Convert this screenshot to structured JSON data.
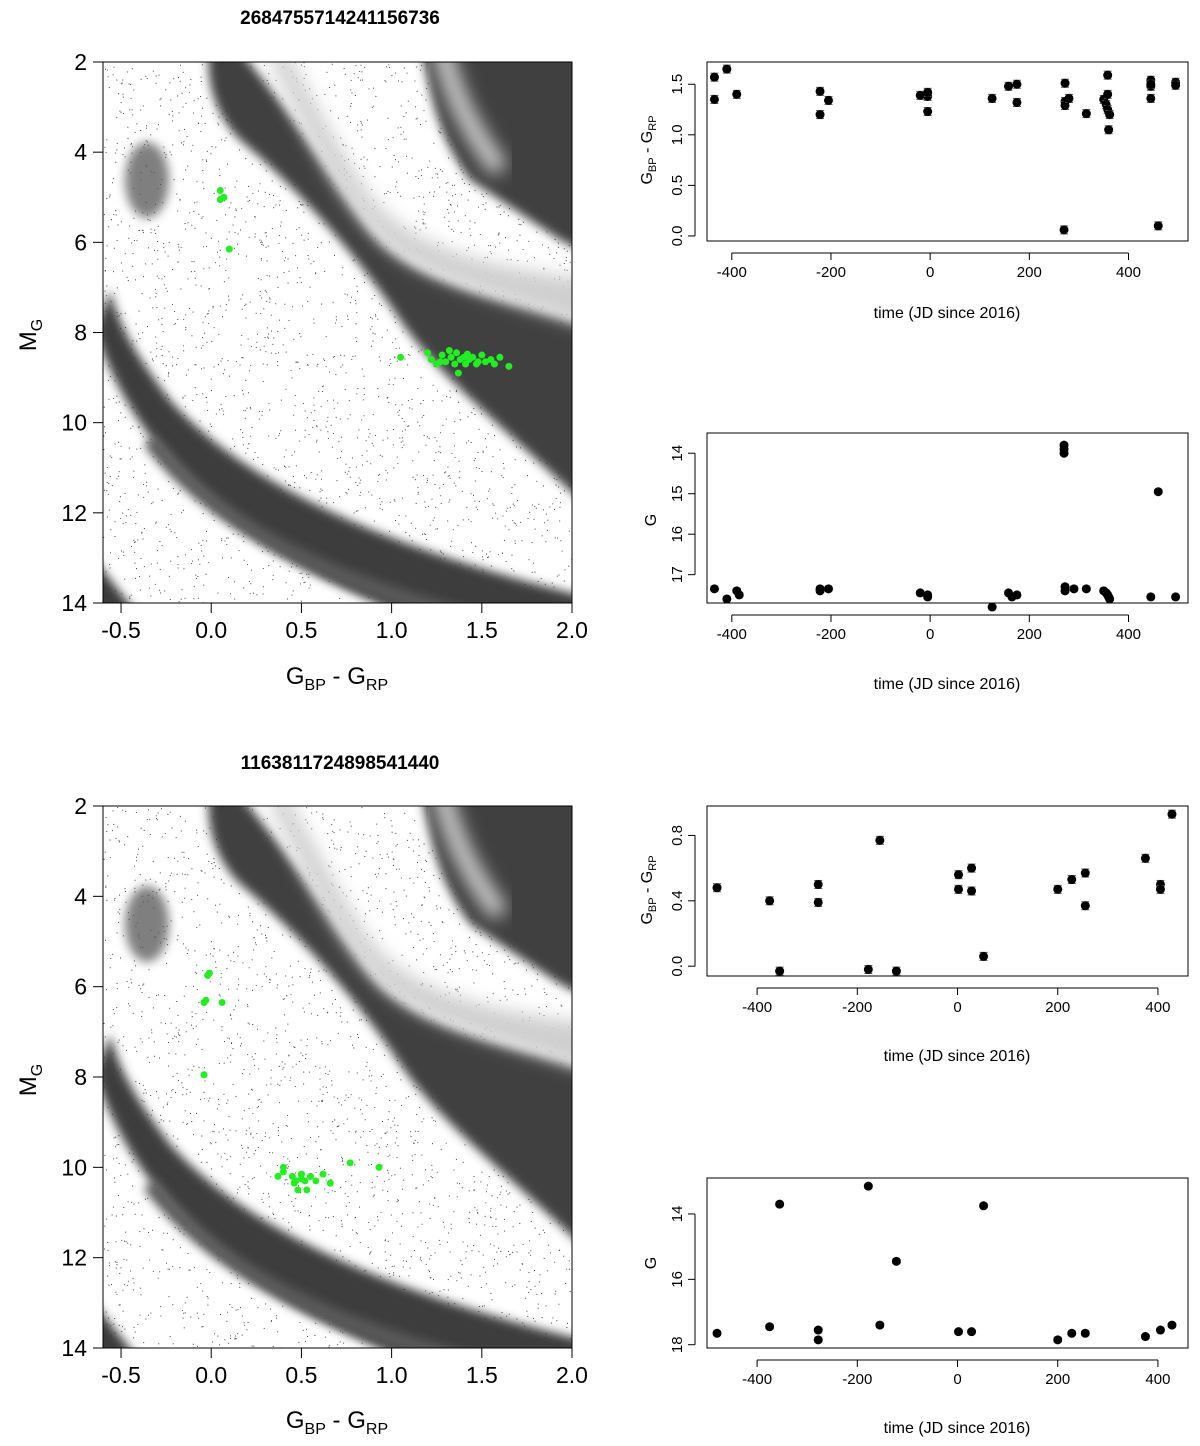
{
  "figures": [
    {
      "source_id": "2684755714241156736",
      "cmd": {
        "type": "scatter",
        "xlabel_main": "G",
        "xlabel_sub1": "BP",
        "xlabel_mid": " - G",
        "xlabel_sub2": "RP",
        "ylabel_main": "M",
        "ylabel_sub": "G",
        "xlim": [
          -0.6,
          2.0
        ],
        "ylim": [
          14,
          2
        ],
        "y_inverted": true,
        "xticks": [
          "-0.5",
          "0.0",
          "0.5",
          "1.0",
          "1.5",
          "2.0"
        ],
        "yticks": [
          "2",
          "4",
          "6",
          "8",
          "10",
          "12",
          "14"
        ],
        "background": "greyscale density of field stars (main sequence, white dwarf sequence, giant branch)",
        "point_color": "#22ee22",
        "points": [
          [
            0.05,
            4.85
          ],
          [
            0.07,
            5.0
          ],
          [
            0.05,
            5.05
          ],
          [
            0.1,
            6.15
          ],
          [
            1.05,
            8.55
          ],
          [
            1.2,
            8.45
          ],
          [
            1.22,
            8.6
          ],
          [
            1.25,
            8.7
          ],
          [
            1.28,
            8.5
          ],
          [
            1.3,
            8.65
          ],
          [
            1.32,
            8.4
          ],
          [
            1.33,
            8.55
          ],
          [
            1.35,
            8.7
          ],
          [
            1.36,
            8.45
          ],
          [
            1.37,
            8.9
          ],
          [
            1.38,
            8.6
          ],
          [
            1.4,
            8.55
          ],
          [
            1.41,
            8.7
          ],
          [
            1.43,
            8.6
          ],
          [
            1.45,
            8.55
          ],
          [
            1.47,
            8.7
          ],
          [
            1.48,
            8.65
          ],
          [
            1.5,
            8.5
          ],
          [
            1.52,
            8.65
          ],
          [
            1.55,
            8.6
          ],
          [
            1.57,
            8.7
          ],
          [
            1.6,
            8.55
          ],
          [
            1.65,
            8.75
          ],
          [
            1.27,
            8.65
          ],
          [
            1.42,
            8.48
          ]
        ]
      },
      "color_ts": {
        "type": "scatter",
        "xlabel": "time (JD since 2016)",
        "ylabel_main": "G",
        "ylabel_sub1": "BP",
        "ylabel_mid": " - G",
        "ylabel_sub2": "RP",
        "xlim": [
          -450,
          520
        ],
        "ylim": [
          -0.05,
          1.72
        ],
        "xticks": [
          "-400",
          "-200",
          "0",
          "200",
          "400"
        ],
        "yticks": [
          "0.0",
          "0.5",
          "1.0",
          "1.5"
        ],
        "points": [
          [
            -435,
            1.57
          ],
          [
            -435,
            1.35
          ],
          [
            -410,
            1.65
          ],
          [
            -390,
            1.4
          ],
          [
            -222,
            1.43
          ],
          [
            -222,
            1.2
          ],
          [
            -205,
            1.34
          ],
          [
            -20,
            1.39
          ],
          [
            -5,
            1.38
          ],
          [
            -5,
            1.23
          ],
          [
            -5,
            1.42
          ],
          [
            125,
            1.36
          ],
          [
            158,
            1.48
          ],
          [
            175,
            1.5
          ],
          [
            175,
            1.32
          ],
          [
            270,
            0.06
          ],
          [
            272,
            1.51
          ],
          [
            272,
            1.33
          ],
          [
            272,
            1.29
          ],
          [
            280,
            1.36
          ],
          [
            315,
            1.21
          ],
          [
            350,
            1.35
          ],
          [
            355,
            1.3
          ],
          [
            358,
            1.59
          ],
          [
            358,
            1.4
          ],
          [
            358,
            1.25
          ],
          [
            360,
            1.05
          ],
          [
            362,
            1.2
          ],
          [
            445,
            1.54
          ],
          [
            445,
            1.48
          ],
          [
            445,
            1.36
          ],
          [
            445,
            1.5
          ],
          [
            460,
            0.1
          ],
          [
            495,
            1.52
          ],
          [
            495,
            1.49
          ]
        ]
      },
      "mag_ts": {
        "type": "scatter",
        "xlabel": "time (JD since 2016)",
        "ylabel": "G",
        "xlim": [
          -450,
          520
        ],
        "ylim": [
          17.7,
          13.5
        ],
        "y_inverted": true,
        "xticks": [
          "-400",
          "-200",
          "0",
          "200",
          "400"
        ],
        "yticks": [
          "14",
          "15",
          "16",
          "17"
        ],
        "points": [
          [
            -435,
            17.35
          ],
          [
            -410,
            17.6
          ],
          [
            -390,
            17.4
          ],
          [
            -385,
            17.5
          ],
          [
            -222,
            17.4
          ],
          [
            -222,
            17.35
          ],
          [
            -205,
            17.35
          ],
          [
            -20,
            17.45
          ],
          [
            -5,
            17.5
          ],
          [
            -5,
            17.55
          ],
          [
            125,
            17.8
          ],
          [
            158,
            17.45
          ],
          [
            165,
            17.55
          ],
          [
            175,
            17.5
          ],
          [
            270,
            13.8
          ],
          [
            270,
            13.9
          ],
          [
            270,
            14.0
          ],
          [
            272,
            17.3
          ],
          [
            272,
            17.4
          ],
          [
            290,
            17.35
          ],
          [
            315,
            17.35
          ],
          [
            350,
            17.4
          ],
          [
            355,
            17.45
          ],
          [
            358,
            17.5
          ],
          [
            360,
            17.55
          ],
          [
            362,
            17.6
          ],
          [
            445,
            17.55
          ],
          [
            460,
            14.95
          ],
          [
            495,
            17.55
          ]
        ]
      }
    },
    {
      "source_id": "1163811724898541440",
      "cmd": {
        "type": "scatter",
        "xlabel_main": "G",
        "xlabel_sub1": "BP",
        "xlabel_mid": " - G",
        "xlabel_sub2": "RP",
        "ylabel_main": "M",
        "ylabel_sub": "G",
        "xlim": [
          -0.6,
          2.0
        ],
        "ylim": [
          14,
          2
        ],
        "y_inverted": true,
        "xticks": [
          "-0.5",
          "0.0",
          "0.5",
          "1.0",
          "1.5",
          "2.0"
        ],
        "yticks": [
          "2",
          "4",
          "6",
          "8",
          "10",
          "12",
          "14"
        ],
        "background": "greyscale density of field stars (main sequence, white dwarf sequence, giant branch)",
        "point_color": "#22ee22",
        "points": [
          [
            -0.01,
            5.7
          ],
          [
            -0.02,
            5.75
          ],
          [
            -0.03,
            6.3
          ],
          [
            -0.04,
            6.35
          ],
          [
            0.06,
            6.35
          ],
          [
            -0.04,
            7.95
          ],
          [
            0.37,
            10.2
          ],
          [
            0.4,
            10.0
          ],
          [
            0.4,
            10.1
          ],
          [
            0.45,
            10.2
          ],
          [
            0.46,
            10.35
          ],
          [
            0.48,
            10.5
          ],
          [
            0.5,
            10.25
          ],
          [
            0.5,
            10.15
          ],
          [
            0.52,
            10.3
          ],
          [
            0.53,
            10.5
          ],
          [
            0.55,
            10.2
          ],
          [
            0.58,
            10.3
          ],
          [
            0.62,
            10.15
          ],
          [
            0.66,
            10.35
          ],
          [
            0.77,
            9.9
          ],
          [
            0.93,
            10.0
          ],
          [
            0.47,
            10.3
          ]
        ]
      },
      "color_ts": {
        "type": "scatter",
        "xlabel": "time (JD since 2016)",
        "ylabel_main": "G",
        "ylabel_sub1": "BP",
        "ylabel_mid": " - G",
        "ylabel_sub2": "RP",
        "xlim": [
          -500,
          460
        ],
        "ylim": [
          -0.06,
          0.98
        ],
        "xticks": [
          "-400",
          "-200",
          "0",
          "200",
          "400"
        ],
        "yticks": [
          "0.0",
          "0.4",
          "0.8"
        ],
        "points": [
          [
            -480,
            0.48
          ],
          [
            -375,
            0.4
          ],
          [
            -355,
            -0.03
          ],
          [
            -278,
            0.5
          ],
          [
            -278,
            0.39
          ],
          [
            -178,
            -0.02
          ],
          [
            -155,
            0.77
          ],
          [
            -122,
            -0.03
          ],
          [
            2,
            0.56
          ],
          [
            2,
            0.47
          ],
          [
            28,
            0.6
          ],
          [
            28,
            0.46
          ],
          [
            52,
            0.06
          ],
          [
            200,
            0.47
          ],
          [
            228,
            0.53
          ],
          [
            255,
            0.57
          ],
          [
            255,
            0.37
          ],
          [
            375,
            0.66
          ],
          [
            405,
            0.5
          ],
          [
            405,
            0.47
          ],
          [
            428,
            0.93
          ]
        ]
      },
      "mag_ts": {
        "type": "scatter",
        "xlabel": "time (JD since 2016)",
        "ylabel": "G",
        "xlim": [
          -500,
          460
        ],
        "ylim": [
          18.1,
          12.9
        ],
        "y_inverted": true,
        "xticks": [
          "-400",
          "-200",
          "0",
          "200",
          "400"
        ],
        "yticks": [
          "14",
          "16",
          "18"
        ],
        "points": [
          [
            -480,
            17.65
          ],
          [
            -375,
            17.45
          ],
          [
            -355,
            13.7
          ],
          [
            -278,
            17.55
          ],
          [
            -278,
            17.85
          ],
          [
            -178,
            13.15
          ],
          [
            -155,
            17.4
          ],
          [
            -122,
            15.45
          ],
          [
            2,
            17.6
          ],
          [
            28,
            17.6
          ],
          [
            52,
            13.75
          ],
          [
            200,
            17.85
          ],
          [
            228,
            17.65
          ],
          [
            255,
            17.65
          ],
          [
            375,
            17.75
          ],
          [
            405,
            17.55
          ],
          [
            428,
            17.4
          ]
        ]
      }
    }
  ]
}
